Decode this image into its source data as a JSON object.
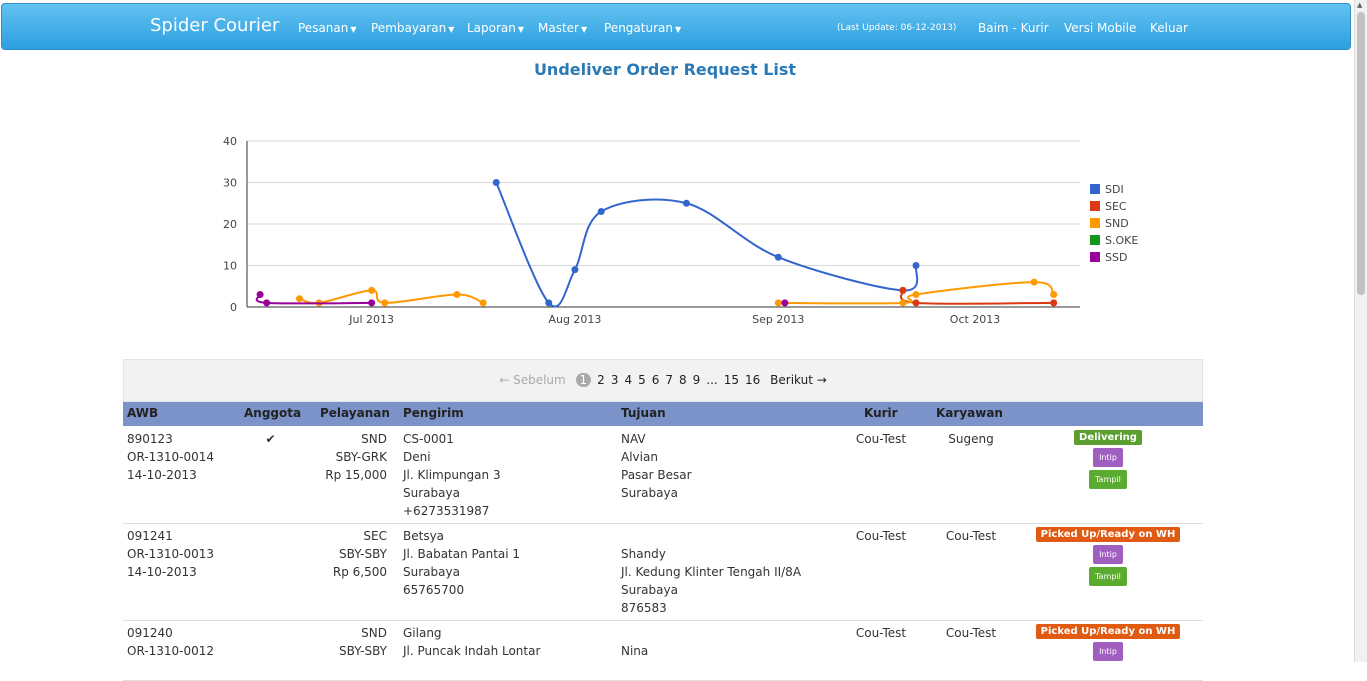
{
  "navbar": {
    "brand": "Spider Courier",
    "menu": [
      "Pesanan",
      "Pembayaran",
      "Laporan",
      "Master",
      "Pengaturan"
    ],
    "last_update": "(Last Update: 06-12-2013)",
    "user": "Baim - Kurir",
    "mobile": "Versi Mobile",
    "logout": "Keluar"
  },
  "page_title": "Undeliver Order Request List",
  "chart_data": {
    "type": "line",
    "ylim": [
      0,
      40
    ],
    "yticks": [
      0,
      10,
      20,
      30,
      40
    ],
    "xticks": [
      "Jul 2013",
      "Aug 2013",
      "Sep 2013",
      "Oct 2013"
    ],
    "legend_position": "right",
    "series": [
      {
        "name": "SDI",
        "color": "#3366cc",
        "points": [
          [
            "2013-07-20",
            30
          ],
          [
            "2013-07-28",
            1
          ],
          [
            "2013-08-01",
            9
          ],
          [
            "2013-08-05",
            23
          ],
          [
            "2013-08-18",
            25
          ],
          [
            "2013-09-01",
            12
          ],
          [
            "2013-09-20",
            4
          ],
          [
            "2013-09-22",
            10
          ]
        ]
      },
      {
        "name": "SEC",
        "color": "#dc3912",
        "points": [
          [
            "2013-09-20",
            4
          ],
          [
            "2013-09-22",
            1
          ],
          [
            "2013-10-13",
            1
          ]
        ]
      },
      {
        "name": "SND",
        "color": "#ff9900",
        "points": [
          [
            "2013-06-20",
            2
          ],
          [
            "2013-06-23",
            1
          ],
          [
            "2013-07-01",
            4
          ],
          [
            "2013-07-03",
            1
          ],
          [
            "2013-07-14",
            3
          ],
          [
            "2013-07-18",
            1
          ],
          [
            "2013-09-01",
            1
          ],
          [
            "2013-09-20",
            1
          ],
          [
            "2013-09-22",
            3
          ],
          [
            "2013-10-10",
            6
          ],
          [
            "2013-10-13",
            3
          ]
        ]
      },
      {
        "name": "S.OKE",
        "color": "#109618",
        "points": []
      },
      {
        "name": "SSD",
        "color": "#990099",
        "points": [
          [
            "2013-06-14",
            3
          ],
          [
            "2013-06-15",
            1
          ],
          [
            "2013-07-01",
            1
          ],
          [
            "2013-09-02",
            1
          ]
        ]
      }
    ]
  },
  "pagination": {
    "prev": "← Sebelum",
    "pages": [
      "1",
      "2",
      "3",
      "4",
      "5",
      "6",
      "7",
      "8",
      "9",
      "...",
      "15",
      "16"
    ],
    "current": "1",
    "next": "Berikut →"
  },
  "table": {
    "headers": {
      "awb": "AWB",
      "anggota": "Anggota",
      "pelayanan": "Pelayanan",
      "pengirim": "Pengirim",
      "tujuan": "Tujuan",
      "kurir": "Kurir",
      "karyawan": "Karyawan"
    },
    "rows": [
      {
        "awb": [
          "890123",
          "OR-1310-0014",
          "14-10-2013"
        ],
        "anggota": "✔",
        "pelayanan": [
          "SND",
          "SBY-GRK",
          "Rp 15,000"
        ],
        "pengirim": [
          "CS-0001",
          "Deni",
          "Jl. Klimpungan 3",
          "Surabaya",
          "+6273531987"
        ],
        "tujuan": [
          "NAV",
          "Alvian",
          "Pasar Besar",
          "Surabaya"
        ],
        "kurir": "Cou-Test",
        "karyawan": "Sugeng",
        "status": "Delivering",
        "status_color": "#5a9e2f",
        "intip": "Intip",
        "tampil": "Tampil"
      },
      {
        "awb": [
          "091241",
          "OR-1310-0013",
          "14-10-2013"
        ],
        "anggota": "",
        "pelayanan": [
          "SEC",
          "SBY-SBY",
          "Rp 6,500"
        ],
        "pengirim": [
          "Betsya",
          "Jl. Babatan Pantai 1",
          "Surabaya",
          "65765700"
        ],
        "tujuan": [
          "",
          "Shandy",
          "Jl. Kedung Klinter Tengah II/8A",
          "Surabaya",
          "876583"
        ],
        "kurir": "Cou-Test",
        "karyawan": "Cou-Test",
        "status": "Picked Up/Ready on WH",
        "status_color": "#e05a12",
        "intip": "Intip",
        "tampil": "Tampil"
      },
      {
        "awb": [
          "091240",
          "OR-1310-0012"
        ],
        "anggota": "",
        "pelayanan": [
          "SND",
          "SBY-SBY"
        ],
        "pengirim": [
          "Gilang",
          "Jl. Puncak Indah Lontar"
        ],
        "tujuan": [
          "",
          "Nina"
        ],
        "kurir": "Cou-Test",
        "karyawan": "Cou-Test",
        "status": "Picked Up/Ready on WH",
        "status_color": "#e05a12",
        "intip": "Intip",
        "tampil": ""
      }
    ]
  },
  "colors": {
    "intip": "#a05fc0",
    "tampil": "#5aab2f"
  }
}
